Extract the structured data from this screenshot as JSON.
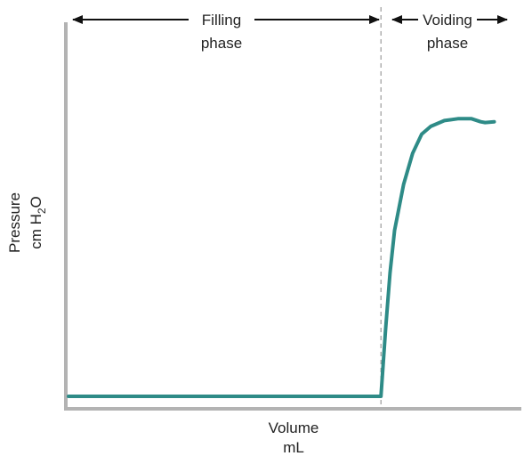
{
  "chart_data": {
    "type": "line",
    "xlabel_line1": "Volume",
    "xlabel_line2": "mL",
    "ylabel_line1": "Pressure",
    "ylabel_line2_prefix": "cm H",
    "ylabel_line2_sub": "2",
    "ylabel_line2_suffix": "O",
    "phases": [
      {
        "label_line1": "Filling",
        "label_line2": "phase"
      },
      {
        "label_line1": "Voiding",
        "label_line2": "phase"
      }
    ],
    "divider_x": 0.69,
    "xlim": [
      0,
      1
    ],
    "ylim": [
      0,
      1
    ],
    "grid": false,
    "series": [
      {
        "color": "#2e8b87",
        "points": [
          [
            0.0,
            0.03
          ],
          [
            0.69,
            0.03
          ],
          [
            0.7,
            0.2
          ],
          [
            0.71,
            0.35
          ],
          [
            0.72,
            0.46
          ],
          [
            0.74,
            0.58
          ],
          [
            0.76,
            0.66
          ],
          [
            0.78,
            0.71
          ],
          [
            0.8,
            0.73
          ],
          [
            0.83,
            0.745
          ],
          [
            0.86,
            0.75
          ],
          [
            0.89,
            0.75
          ],
          [
            0.91,
            0.742
          ],
          [
            0.92,
            0.74
          ],
          [
            0.94,
            0.742
          ]
        ]
      }
    ]
  }
}
